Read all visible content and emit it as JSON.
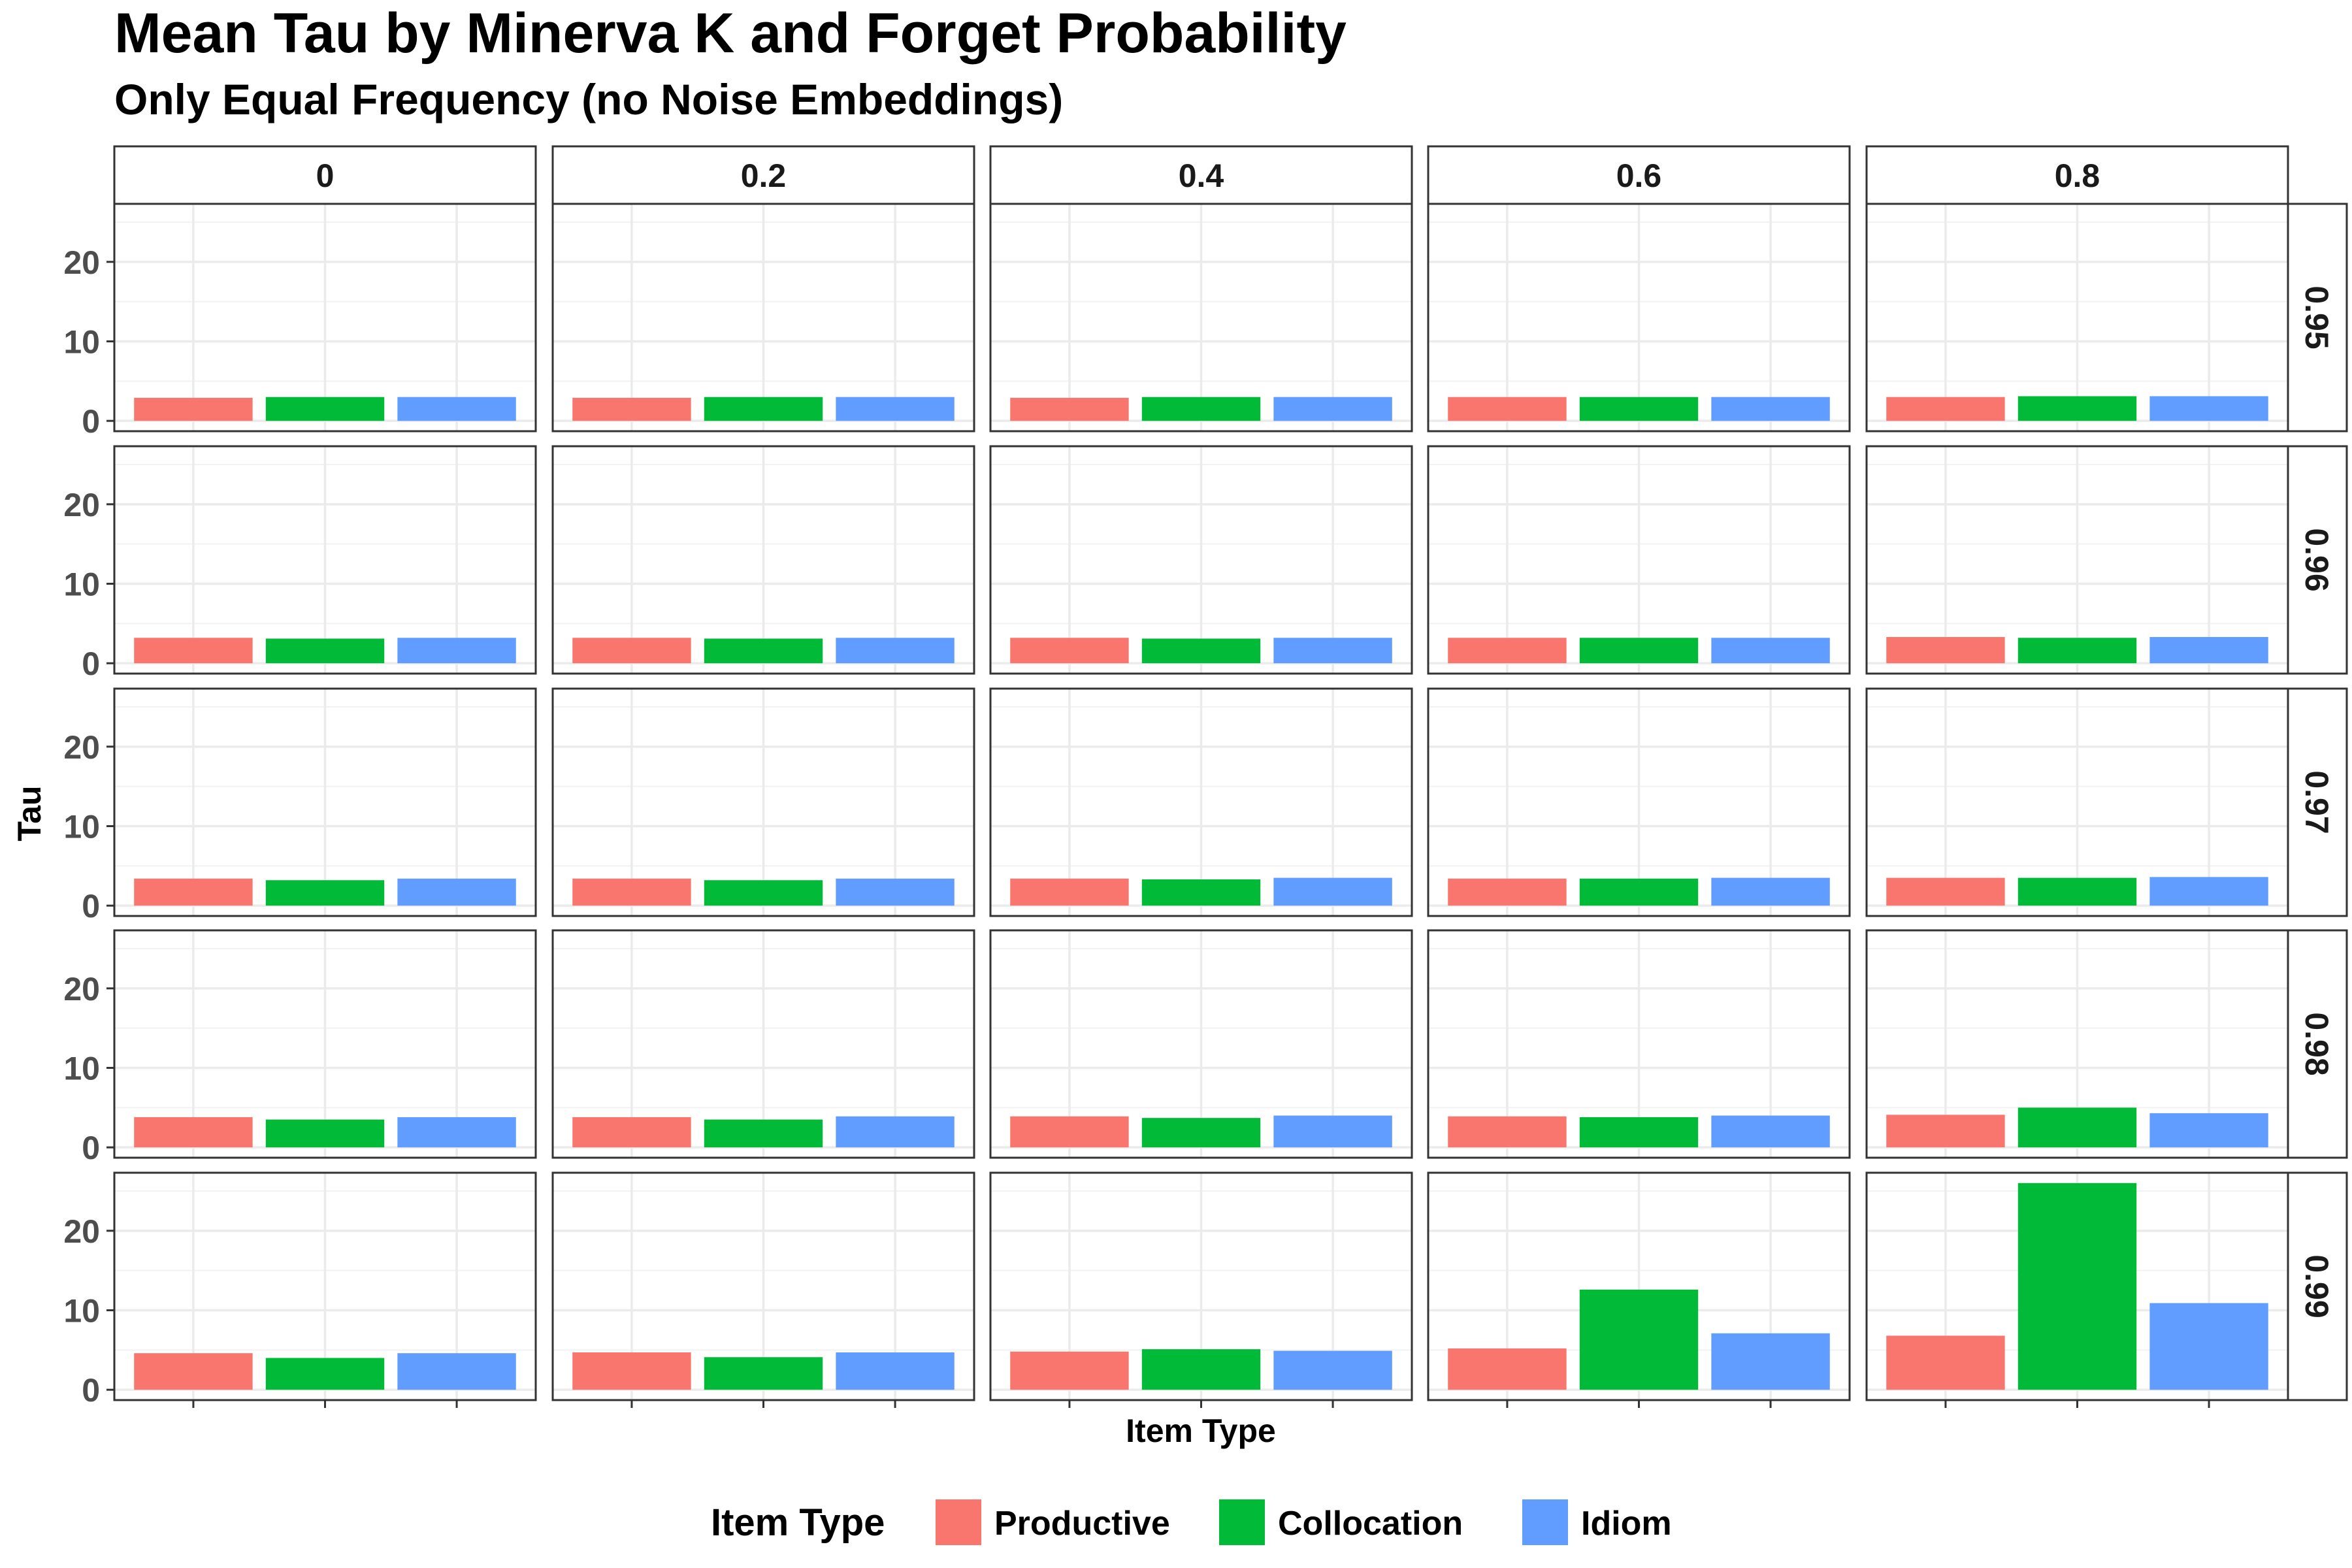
{
  "chart_data": {
    "type": "bar",
    "title": "Mean Tau by Minerva K and Forget Probability",
    "subtitle": "Only Equal Frequency (no Noise Embeddings)",
    "xlabel": "Item Type",
    "ylabel": "Tau",
    "ylim": [
      -1.3,
      27.3
    ],
    "y_ticks": [
      "0",
      "10",
      "20"
    ],
    "y_tick_values": [
      0,
      10,
      20
    ],
    "grid": true,
    "legend_position": "bottom",
    "legend_title": "Item Type",
    "categories": [
      "Productive",
      "Collocation",
      "Idiom"
    ],
    "colors": [
      "#F8766D",
      "#00BA38",
      "#619CFF"
    ],
    "column_facets": [
      "0",
      "0.2",
      "0.4",
      "0.6",
      "0.8"
    ],
    "row_facets": [
      "0.95",
      "0.96",
      "0.97",
      "0.98",
      "0.99"
    ],
    "values": [
      [
        [
          2.9,
          3.0,
          3.0
        ],
        [
          2.9,
          3.0,
          3.0
        ],
        [
          2.9,
          3.0,
          3.0
        ],
        [
          3.0,
          3.0,
          3.0
        ],
        [
          3.0,
          3.1,
          3.1
        ]
      ],
      [
        [
          3.2,
          3.1,
          3.2
        ],
        [
          3.2,
          3.1,
          3.2
        ],
        [
          3.2,
          3.1,
          3.2
        ],
        [
          3.2,
          3.2,
          3.2
        ],
        [
          3.3,
          3.2,
          3.3
        ]
      ],
      [
        [
          3.4,
          3.2,
          3.4
        ],
        [
          3.4,
          3.2,
          3.4
        ],
        [
          3.4,
          3.3,
          3.5
        ],
        [
          3.4,
          3.4,
          3.5
        ],
        [
          3.5,
          3.5,
          3.6
        ]
      ],
      [
        [
          3.8,
          3.5,
          3.8
        ],
        [
          3.8,
          3.5,
          3.9
        ],
        [
          3.9,
          3.7,
          4.0
        ],
        [
          3.9,
          3.8,
          4.0
        ],
        [
          4.1,
          5.0,
          4.3
        ]
      ],
      [
        [
          4.6,
          4.0,
          4.6
        ],
        [
          4.7,
          4.1,
          4.7
        ],
        [
          4.8,
          5.1,
          4.9
        ],
        [
          5.2,
          12.6,
          7.1
        ],
        [
          6.8,
          26.0,
          10.9
        ]
      ]
    ]
  }
}
